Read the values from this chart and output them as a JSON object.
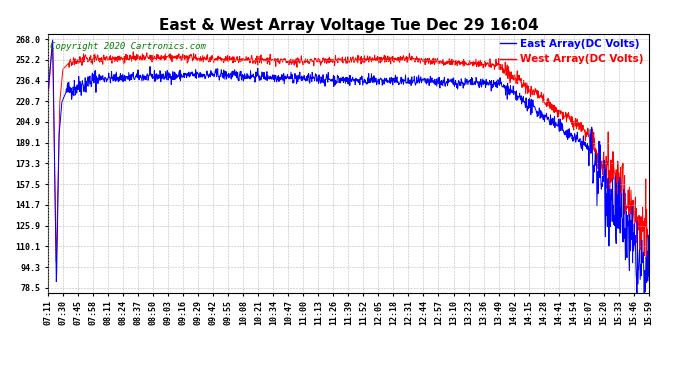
{
  "title": "East & West Array Voltage Tue Dec 29 16:04",
  "copyright": "Copyright 2020 Cartronics.com",
  "legend_east": "East Array(DC Volts)",
  "legend_west": "West Array(DC Volts)",
  "color_east": "blue",
  "color_west": "red",
  "background_color": "#ffffff",
  "plot_bg_color": "#ffffff",
  "grid_color": "#bbbbbb",
  "yticks": [
    78.5,
    94.3,
    110.1,
    125.9,
    141.7,
    157.5,
    173.3,
    189.1,
    204.9,
    220.7,
    236.4,
    252.2,
    268.0
  ],
  "ylim": [
    75.0,
    272.0
  ],
  "xtick_labels": [
    "07:11",
    "07:30",
    "07:45",
    "07:58",
    "08:11",
    "08:24",
    "08:37",
    "08:50",
    "09:03",
    "09:16",
    "09:29",
    "09:42",
    "09:55",
    "10:08",
    "10:21",
    "10:34",
    "10:47",
    "11:00",
    "11:13",
    "11:26",
    "11:39",
    "11:52",
    "12:05",
    "12:18",
    "12:31",
    "12:44",
    "12:57",
    "13:10",
    "13:23",
    "13:36",
    "13:49",
    "14:02",
    "14:15",
    "14:28",
    "14:41",
    "14:54",
    "15:07",
    "15:20",
    "15:33",
    "15:46",
    "15:59"
  ],
  "title_fontsize": 11,
  "axis_fontsize": 6,
  "legend_fontsize": 7.5,
  "copyright_fontsize": 6.5,
  "linewidth": 0.7,
  "seed": 42
}
